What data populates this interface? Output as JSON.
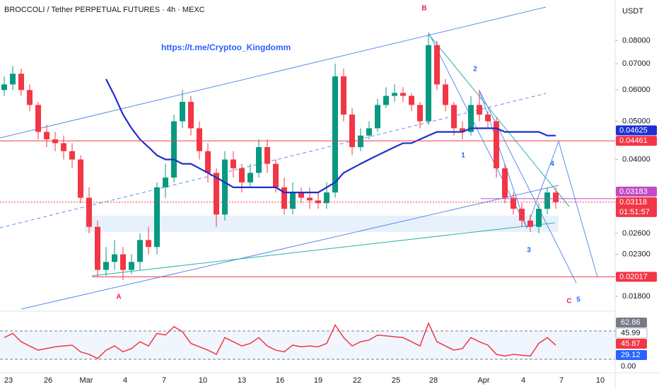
{
  "chart_data": {
    "type": "candlestick",
    "title": "BROCCOLI / Tether PERPETUAL FUTURES · 4h · MEXC",
    "currency": "USDT",
    "link": "https://t.me/Cryptoo_Kingdomm",
    "log_scale": true,
    "up_color": "#089981",
    "down_color": "#f23645",
    "ma_color": "#1e2fc8",
    "ylim": [
      0.0165,
      0.1015
    ],
    "yticks": [
      {
        "value": 0.08,
        "label": "0.08000"
      },
      {
        "value": 0.07,
        "label": "0.07000"
      },
      {
        "value": 0.06,
        "label": "0.06000"
      },
      {
        "value": 0.05,
        "label": "0.05000"
      },
      {
        "value": 0.04,
        "label": "0.04000"
      },
      {
        "value": 0.026,
        "label": "0.02600"
      },
      {
        "value": 0.023,
        "label": "0.02300"
      },
      {
        "value": 0.018,
        "label": "0.01800"
      }
    ],
    "xticks": [
      "23",
      "26",
      "Mar",
      "4",
      "7",
      "10",
      "13",
      "16",
      "19",
      "22",
      "25",
      "28",
      "Apr",
      "4",
      "7",
      "10"
    ],
    "open": [
      0.06,
      0.062,
      0.066,
      0.06,
      0.055,
      0.047,
      0.045,
      0.044,
      0.042,
      0.04,
      0.032,
      0.027,
      0.021,
      0.022,
      0.023,
      0.021,
      0.022,
      0.025,
      0.024,
      0.034,
      0.036,
      0.05,
      0.056,
      0.048,
      0.042,
      0.037,
      0.029,
      0.04,
      0.038,
      0.035,
      0.037,
      0.043,
      0.039,
      0.034,
      0.03,
      0.033,
      0.032,
      0.0315,
      0.031,
      0.033,
      0.065,
      0.052,
      0.043,
      0.046,
      0.048,
      0.055,
      0.058,
      0.059,
      0.058,
      0.055,
      0.05,
      0.078,
      0.062,
      0.055,
      0.048,
      0.047,
      0.055,
      0.052,
      0.05,
      0.038,
      0.032,
      0.03,
      0.028,
      0.027,
      0.03,
      0.033
    ],
    "high": [
      0.065,
      0.069,
      0.068,
      0.062,
      0.056,
      0.049,
      0.047,
      0.046,
      0.044,
      0.041,
      0.034,
      0.028,
      0.024,
      0.025,
      0.024,
      0.023,
      0.026,
      0.027,
      0.035,
      0.039,
      0.052,
      0.06,
      0.058,
      0.05,
      0.044,
      0.038,
      0.042,
      0.042,
      0.039,
      0.039,
      0.045,
      0.045,
      0.04,
      0.036,
      0.035,
      0.034,
      0.034,
      0.033,
      0.035,
      0.07,
      0.068,
      0.054,
      0.048,
      0.05,
      0.057,
      0.061,
      0.062,
      0.061,
      0.059,
      0.056,
      0.083,
      0.08,
      0.064,
      0.056,
      0.05,
      0.058,
      0.06,
      0.053,
      0.051,
      0.039,
      0.033,
      0.031,
      0.029,
      0.031,
      0.034,
      0.034
    ],
    "low": [
      0.058,
      0.06,
      0.058,
      0.053,
      0.045,
      0.043,
      0.042,
      0.04,
      0.038,
      0.031,
      0.026,
      0.0202,
      0.0203,
      0.021,
      0.0198,
      0.0205,
      0.021,
      0.023,
      0.023,
      0.032,
      0.035,
      0.048,
      0.046,
      0.04,
      0.035,
      0.027,
      0.028,
      0.036,
      0.033,
      0.034,
      0.036,
      0.037,
      0.033,
      0.029,
      0.029,
      0.031,
      0.03,
      0.03,
      0.03,
      0.032,
      0.05,
      0.041,
      0.042,
      0.045,
      0.047,
      0.054,
      0.056,
      0.056,
      0.053,
      0.048,
      0.049,
      0.06,
      0.053,
      0.046,
      0.045,
      0.046,
      0.05,
      0.048,
      0.036,
      0.031,
      0.029,
      0.027,
      0.0262,
      0.026,
      0.029,
      0.03
    ],
    "close": [
      0.062,
      0.066,
      0.06,
      0.055,
      0.047,
      0.045,
      0.044,
      0.042,
      0.04,
      0.032,
      0.027,
      0.021,
      0.022,
      0.023,
      0.021,
      0.022,
      0.025,
      0.024,
      0.034,
      0.036,
      0.05,
      0.056,
      0.048,
      0.042,
      0.037,
      0.029,
      0.04,
      0.038,
      0.035,
      0.037,
      0.043,
      0.039,
      0.034,
      0.03,
      0.033,
      0.032,
      0.0315,
      0.031,
      0.033,
      0.065,
      0.052,
      0.043,
      0.046,
      0.048,
      0.055,
      0.058,
      0.059,
      0.058,
      0.055,
      0.05,
      0.078,
      0.062,
      0.055,
      0.048,
      0.047,
      0.055,
      0.052,
      0.05,
      0.038,
      0.032,
      0.03,
      0.028,
      0.027,
      0.03,
      0.033,
      0.0312
    ],
    "ma": [
      null,
      null,
      null,
      null,
      null,
      null,
      null,
      null,
      null,
      null,
      null,
      null,
      0.064,
      0.058,
      0.052,
      0.048,
      0.045,
      0.043,
      0.041,
      0.04,
      0.04,
      0.039,
      0.039,
      0.038,
      0.037,
      0.036,
      0.035,
      0.034,
      0.034,
      0.034,
      0.034,
      0.034,
      0.034,
      0.033,
      0.033,
      0.033,
      0.033,
      0.033,
      0.034,
      0.035,
      0.037,
      0.038,
      0.039,
      0.04,
      0.041,
      0.042,
      0.043,
      0.044,
      0.044,
      0.045,
      0.046,
      0.047,
      0.047,
      0.047,
      0.047,
      0.048,
      0.048,
      0.048,
      0.048,
      0.047,
      0.047,
      0.047,
      0.047,
      0.047,
      0.046,
      0.046
    ],
    "price_labels": [
      {
        "value": 0.04625,
        "label": "0.04625",
        "color": "#1e2fd6"
      },
      {
        "value": 0.04461,
        "label": "0.04461",
        "color": "#f23645"
      },
      {
        "value": 0.03183,
        "label": "0.03183",
        "color": "#c04bc4"
      },
      {
        "value": 0.03118,
        "label": "0.03118",
        "color": "#f23645"
      },
      {
        "value": 0.02017,
        "label": "0.02017",
        "color": "#f23645"
      }
    ],
    "countdown": "01:51:57",
    "annotations": [
      "B",
      "2",
      "1",
      "3",
      "4",
      "5",
      "C",
      "A"
    ],
    "rsi": {
      "color": "#f23645",
      "ylim": [
        19,
        78
      ],
      "values": [
        55,
        60,
        50,
        45,
        40,
        42,
        44,
        45,
        46,
        38,
        35,
        30,
        40,
        45,
        38,
        42,
        50,
        45,
        60,
        58,
        68,
        62,
        48,
        44,
        40,
        35,
        55,
        50,
        45,
        48,
        55,
        45,
        40,
        38,
        46,
        44,
        45,
        44,
        48,
        70,
        55,
        45,
        50,
        52,
        58,
        57,
        56,
        55,
        50,
        45,
        72,
        50,
        45,
        40,
        42,
        55,
        50,
        46,
        35,
        33,
        35,
        34,
        33,
        48,
        55,
        46
      ],
      "labels": [
        {
          "value": 62.86,
          "label": "62.86"
        },
        {
          "value": 45.99,
          "label": "45.99"
        },
        {
          "value": 45.87,
          "label": "45.87"
        },
        {
          "value": 29.12,
          "label": "29.12"
        },
        {
          "value": 0,
          "label": "0.00"
        }
      ]
    }
  }
}
